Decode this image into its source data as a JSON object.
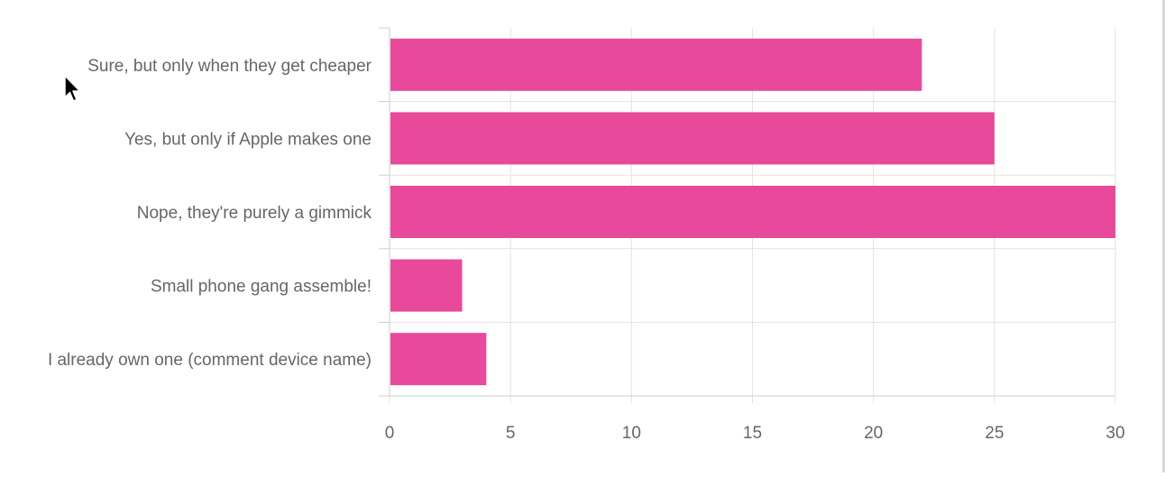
{
  "chart_data": {
    "type": "bar",
    "orientation": "horizontal",
    "categories": [
      "Sure, but only when they get cheaper",
      "Yes, but only if Apple makes one",
      "Nope, they're purely a gimmick",
      "Small phone gang assemble!",
      "I already own one (comment device name)"
    ],
    "values": [
      22,
      25,
      30,
      3,
      4
    ],
    "xlim": [
      0,
      30
    ],
    "xticks": [
      "0",
      "5",
      "10",
      "15",
      "20",
      "25",
      "30"
    ],
    "grid": true,
    "bar_color": "#e8499a",
    "grid_color": "#e3e3e3",
    "label_color": "#666666"
  }
}
